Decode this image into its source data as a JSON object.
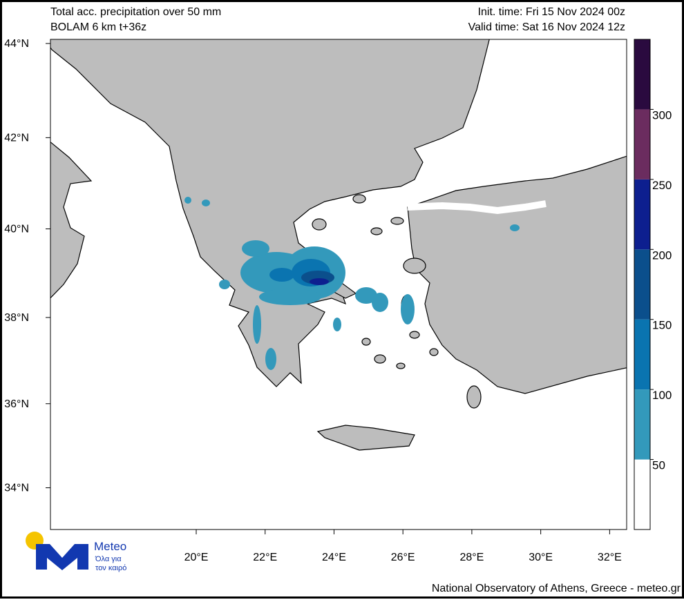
{
  "header": {
    "title": "Total acc. precipitation over 50 mm",
    "model": "BOLAM 6 km t+36z",
    "init_time": "Init. time: Fri 15 Nov 2024 00z",
    "valid_time": "Valid time: Sat 16 Nov 2024 12z"
  },
  "map": {
    "lat_ticks": [
      {
        "value": 44,
        "label": "44°N"
      },
      {
        "value": 42,
        "label": "42°N"
      },
      {
        "value": 40,
        "label": "40°N"
      },
      {
        "value": 38,
        "label": "38°N"
      },
      {
        "value": 36,
        "label": "36°N"
      },
      {
        "value": 34,
        "label": "34°N"
      }
    ],
    "lon_ticks": [
      {
        "value": 20,
        "label": "20°E"
      },
      {
        "value": 22,
        "label": "22°E"
      },
      {
        "value": 24,
        "label": "24°E"
      },
      {
        "value": 26,
        "label": "26°E"
      },
      {
        "value": 28,
        "label": "28°E"
      },
      {
        "value": 30,
        "label": "30°E"
      },
      {
        "value": 32,
        "label": "32°E"
      }
    ]
  },
  "colorbar": {
    "ticks": [
      50,
      100,
      150,
      200,
      250,
      300
    ],
    "colors": [
      "#ffffff",
      "#3399bb",
      "#0a74b0",
      "#0b4f8c",
      "#0d1f8f",
      "#6b2c5f",
      "#2a0a3f"
    ]
  },
  "logo": {
    "name": "Meteo",
    "line1": "Όλα για",
    "line2": "τον καιρό"
  },
  "footer": "National Observatory of Athens, Greece - meteo.gr"
}
